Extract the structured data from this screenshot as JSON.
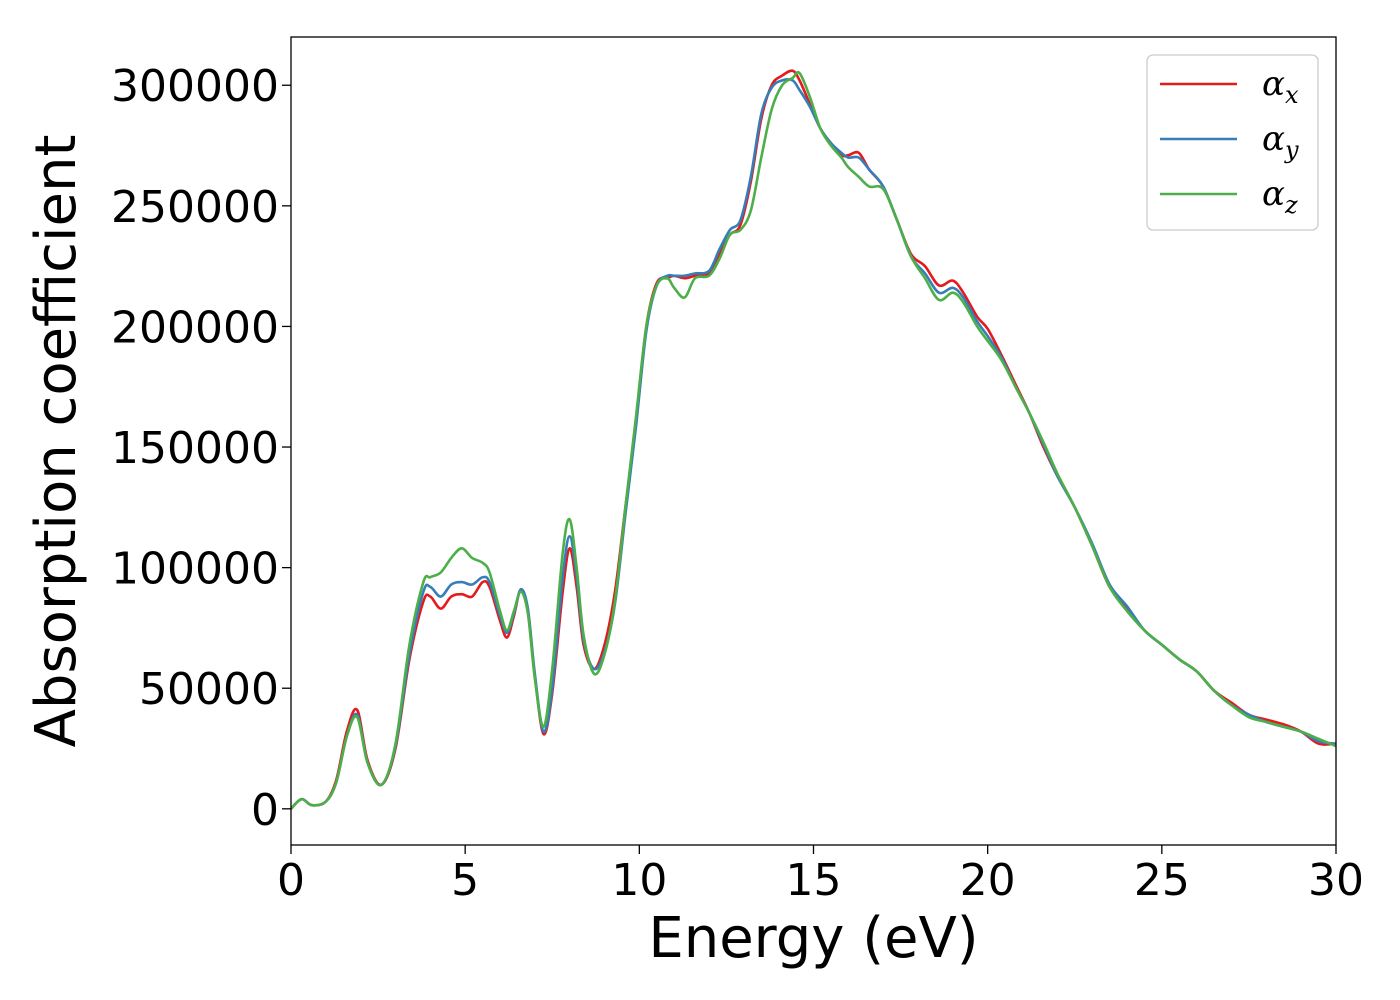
{
  "chart_data": {
    "type": "line",
    "xlabel": "Energy (eV)",
    "ylabel": "Absorption coefficient",
    "xlim": [
      0,
      30
    ],
    "ylim": [
      -15000,
      320000
    ],
    "xticks": [
      "0",
      "5",
      "10",
      "15",
      "20",
      "25",
      "30"
    ],
    "yticks": [
      "0",
      "50000",
      "100000",
      "150000",
      "200000",
      "250000",
      "300000"
    ],
    "grid": false,
    "legend": "top-right",
    "series": [
      {
        "name": "αx",
        "label_base": "α",
        "label_sub": "x",
        "color": "#e41a1c",
        "x": [
          0,
          0.3,
          0.6,
          1.0,
          1.3,
          1.6,
          1.9,
          2.2,
          2.6,
          3.0,
          3.4,
          3.8,
          4.0,
          4.3,
          4.6,
          4.9,
          5.2,
          5.5,
          5.7,
          6.0,
          6.2,
          6.4,
          6.6,
          6.8,
          7.0,
          7.25,
          7.5,
          7.8,
          8.0,
          8.2,
          8.4,
          8.7,
          9.0,
          9.3,
          9.6,
          9.9,
          10.2,
          10.5,
          10.8,
          11.0,
          11.3,
          11.6,
          12.0,
          12.3,
          12.6,
          12.9,
          13.2,
          13.5,
          13.8,
          14.1,
          14.4,
          14.6,
          14.9,
          15.2,
          15.5,
          15.8,
          16.0,
          16.3,
          16.6,
          17.0,
          17.4,
          17.8,
          18.2,
          18.6,
          19.0,
          19.3,
          19.7,
          20.0,
          20.4,
          20.8,
          21.2,
          21.6,
          22.0,
          22.5,
          23.0,
          23.5,
          24.0,
          24.5,
          25.0,
          25.5,
          26.0,
          26.5,
          27.0,
          27.5,
          28.0,
          28.5,
          29.0,
          29.5,
          30.0
        ],
        "y": [
          0,
          4000,
          1500,
          3000,
          12000,
          32000,
          41000,
          20000,
          10000,
          25000,
          62000,
          86000,
          88000,
          83000,
          88000,
          89000,
          88000,
          94000,
          92000,
          78000,
          71000,
          80000,
          91000,
          82000,
          55000,
          31000,
          48000,
          90000,
          108000,
          92000,
          68000,
          58000,
          68000,
          90000,
          125000,
          160000,
          200000,
          218000,
          220000,
          221000,
          220000,
          221000,
          222000,
          230000,
          238000,
          242000,
          260000,
          286000,
          300000,
          304000,
          306000,
          302000,
          292000,
          282000,
          276000,
          271000,
          271000,
          272000,
          265000,
          258000,
          244000,
          230000,
          225000,
          217000,
          219000,
          214000,
          204000,
          199000,
          188000,
          176000,
          164000,
          150000,
          138000,
          125000,
          109000,
          92000,
          83000,
          74000,
          68000,
          62000,
          57000,
          49000,
          44000,
          39000,
          37000,
          35000,
          32000,
          27000,
          27000
        ]
      },
      {
        "name": "αy",
        "label_base": "α",
        "label_sub": "y",
        "color": "#377eb8",
        "x": [
          0,
          0.3,
          0.6,
          1.0,
          1.3,
          1.6,
          1.9,
          2.2,
          2.6,
          3.0,
          3.4,
          3.8,
          4.0,
          4.3,
          4.6,
          4.9,
          5.2,
          5.5,
          5.7,
          6.0,
          6.2,
          6.4,
          6.6,
          6.8,
          7.0,
          7.25,
          7.5,
          7.8,
          8.0,
          8.2,
          8.4,
          8.7,
          9.0,
          9.3,
          9.6,
          9.9,
          10.2,
          10.5,
          10.8,
          11.0,
          11.3,
          11.6,
          12.0,
          12.3,
          12.6,
          12.9,
          13.2,
          13.5,
          13.8,
          14.1,
          14.4,
          14.6,
          14.9,
          15.2,
          15.5,
          15.8,
          16.0,
          16.3,
          16.6,
          17.0,
          17.4,
          17.8,
          18.2,
          18.6,
          19.0,
          19.3,
          19.7,
          20.0,
          20.4,
          20.8,
          21.2,
          21.6,
          22.0,
          22.5,
          23.0,
          23.5,
          24.0,
          24.5,
          25.0,
          25.5,
          26.0,
          26.5,
          27.0,
          27.5,
          28.0,
          28.5,
          29.0,
          29.5,
          30.0
        ],
        "y": [
          0,
          4000,
          1500,
          3000,
          11000,
          30000,
          39000,
          19000,
          10000,
          26000,
          64000,
          90000,
          92000,
          88000,
          93000,
          94000,
          93000,
          96000,
          94000,
          80000,
          73000,
          81000,
          91000,
          83000,
          56000,
          32000,
          50000,
          96000,
          113000,
          96000,
          70000,
          58000,
          65000,
          85000,
          122000,
          158000,
          198000,
          217000,
          221000,
          221000,
          221000,
          222000,
          223000,
          232000,
          240000,
          244000,
          262000,
          288000,
          299000,
          302000,
          302000,
          298000,
          291000,
          282000,
          276000,
          272000,
          270000,
          270000,
          265000,
          258000,
          244000,
          229000,
          222000,
          214000,
          216000,
          212000,
          202000,
          196000,
          187000,
          175000,
          164000,
          151000,
          138000,
          125000,
          110000,
          93000,
          84000,
          74000,
          68000,
          62000,
          57000,
          49000,
          43000,
          39000,
          36000,
          34000,
          32000,
          28000,
          27000
        ]
      },
      {
        "name": "αz",
        "label_base": "α",
        "label_sub": "z",
        "color": "#4daf4a",
        "x": [
          0,
          0.3,
          0.6,
          1.0,
          1.3,
          1.6,
          1.9,
          2.2,
          2.6,
          3.0,
          3.4,
          3.8,
          4.0,
          4.3,
          4.6,
          4.9,
          5.2,
          5.5,
          5.7,
          6.0,
          6.2,
          6.4,
          6.6,
          6.8,
          7.0,
          7.25,
          7.5,
          7.8,
          8.0,
          8.2,
          8.4,
          8.7,
          9.0,
          9.3,
          9.6,
          9.9,
          10.2,
          10.5,
          10.8,
          11.0,
          11.3,
          11.6,
          12.0,
          12.3,
          12.6,
          12.9,
          13.2,
          13.5,
          13.8,
          14.1,
          14.4,
          14.6,
          14.9,
          15.2,
          15.5,
          15.8,
          16.0,
          16.3,
          16.6,
          17.0,
          17.4,
          17.8,
          18.2,
          18.6,
          19.0,
          19.3,
          19.7,
          20.0,
          20.4,
          20.8,
          21.2,
          21.6,
          22.0,
          22.5,
          23.0,
          23.5,
          24.0,
          24.5,
          25.0,
          25.5,
          26.0,
          26.5,
          27.0,
          27.5,
          28.0,
          28.5,
          29.0,
          29.5,
          30.0
        ],
        "y": [
          0,
          4000,
          1500,
          3000,
          11000,
          30000,
          38000,
          19000,
          10000,
          27000,
          68000,
          94000,
          96000,
          98000,
          104000,
          108000,
          104000,
          102000,
          98000,
          82000,
          74000,
          82000,
          90000,
          81000,
          54000,
          34000,
          58000,
          106000,
          120000,
          100000,
          72000,
          56000,
          64000,
          86000,
          125000,
          162000,
          200000,
          217000,
          220000,
          216000,
          212000,
          220000,
          221000,
          228000,
          238000,
          240000,
          248000,
          270000,
          290000,
          300000,
          303000,
          305000,
          295000,
          282000,
          275000,
          270000,
          266000,
          262000,
          258000,
          257000,
          244000,
          229000,
          220000,
          211000,
          214000,
          210000,
          200000,
          194000,
          186000,
          175000,
          164000,
          152000,
          139000,
          125000,
          109000,
          92000,
          82000,
          74000,
          68000,
          62000,
          57000,
          49000,
          43000,
          38000,
          36000,
          34000,
          32000,
          29000,
          26000
        ]
      }
    ]
  }
}
